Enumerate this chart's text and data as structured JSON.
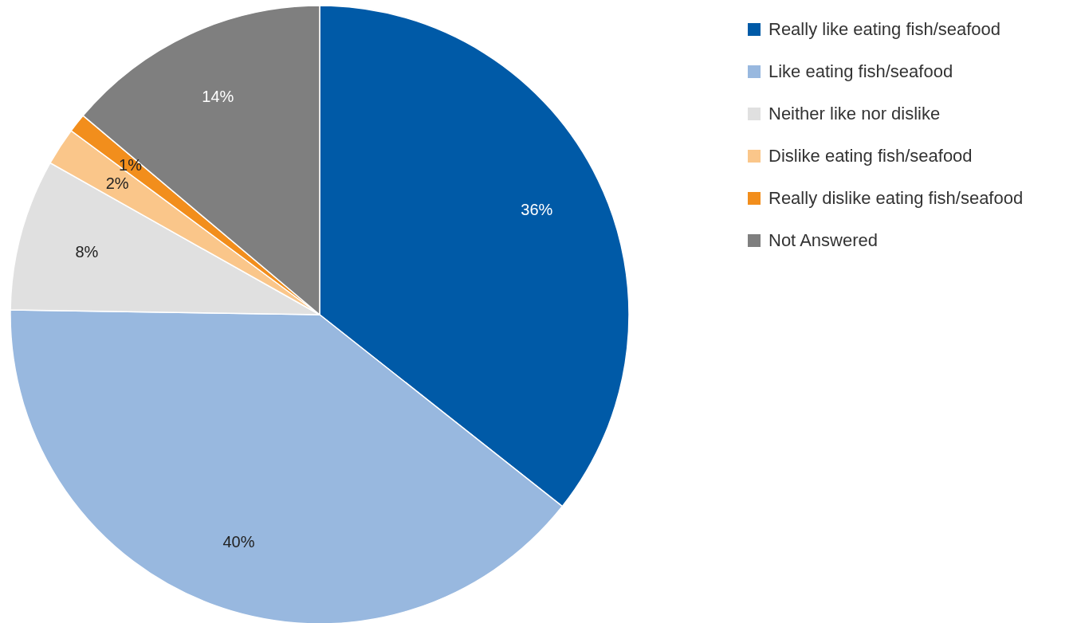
{
  "chart_data": {
    "type": "pie",
    "categories": [
      "Really like eating fish/seafood",
      "Like eating fish/seafood",
      "Neither like nor dislike",
      "Dislike eating fish/seafood",
      "Really dislike eating fish/seafood",
      "Not Answered"
    ],
    "values": [
      36,
      40,
      8,
      2,
      1,
      14
    ],
    "colors": [
      "#005aa7",
      "#98b8df",
      "#e0e0e0",
      "#fac68a",
      "#f28e1c",
      "#7f7f7f"
    ],
    "value_labels": [
      "36%",
      "40%",
      "8%",
      "2%",
      "1%",
      "14%"
    ],
    "legend": "right"
  }
}
